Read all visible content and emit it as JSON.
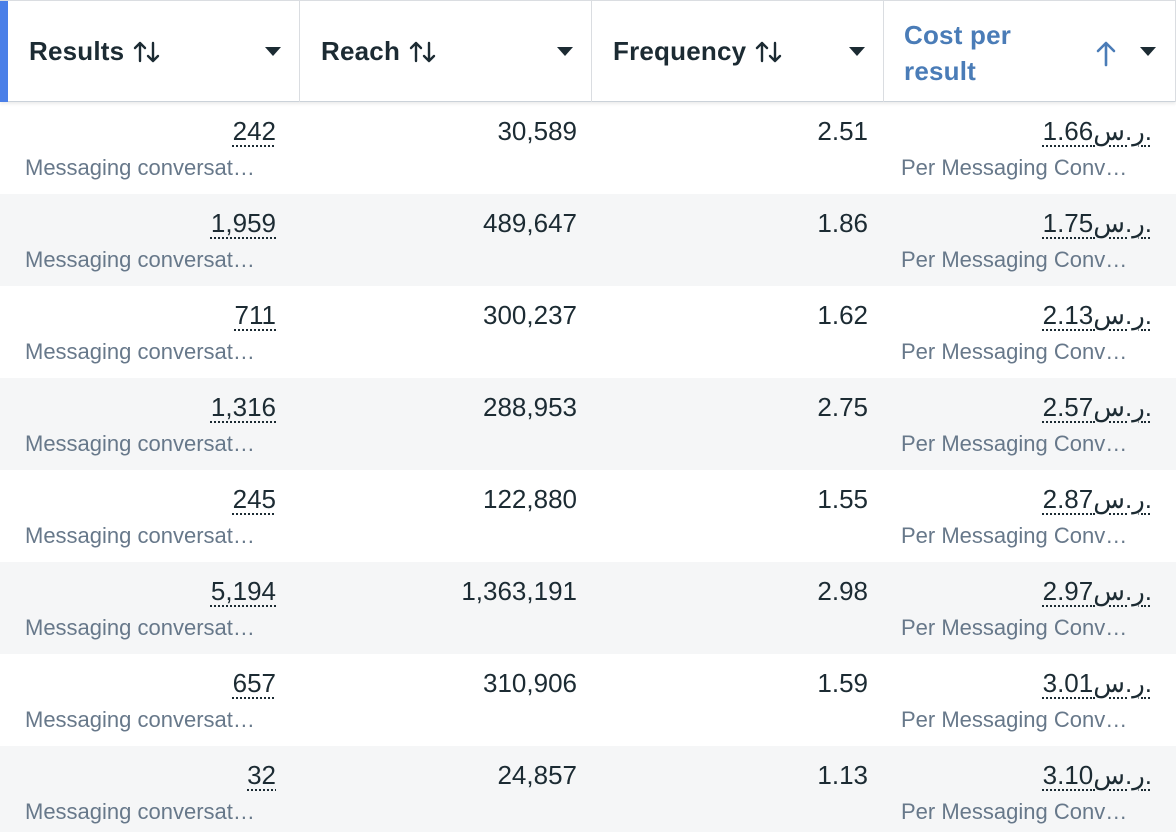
{
  "columns": {
    "results": {
      "label": "Results"
    },
    "reach": {
      "label": "Reach"
    },
    "frequency": {
      "label": "Frequency"
    },
    "cost": {
      "label": "Cost per result"
    }
  },
  "colors": {
    "accent": "#4a7fe8",
    "active_header": "#4a7cb7",
    "row_alt": "#f5f6f7",
    "text": "#1c2b33",
    "subtext": "#67788a"
  },
  "icons": {
    "sort": "sort-up-down-icon",
    "dropdown": "caret-down-icon",
    "sorted": "arrow-up-icon"
  },
  "rows": [
    {
      "results": "242",
      "results_sub": "Messaging conversat…",
      "reach": "30,589",
      "frequency": "2.51",
      "cost": "1.66ر.س.",
      "cost_sub": "Per Messaging Conv…"
    },
    {
      "results": "1,959",
      "results_sub": "Messaging conversat…",
      "reach": "489,647",
      "frequency": "1.86",
      "cost": "1.75ر.س.",
      "cost_sub": "Per Messaging Conv…"
    },
    {
      "results": "711",
      "results_sub": "Messaging conversat…",
      "reach": "300,237",
      "frequency": "1.62",
      "cost": "2.13ر.س.",
      "cost_sub": "Per Messaging Conv…"
    },
    {
      "results": "1,316",
      "results_sub": "Messaging conversat…",
      "reach": "288,953",
      "frequency": "2.75",
      "cost": "2.57ر.س.",
      "cost_sub": "Per Messaging Conv…"
    },
    {
      "results": "245",
      "results_sub": "Messaging conversat…",
      "reach": "122,880",
      "frequency": "1.55",
      "cost": "2.87ر.س.",
      "cost_sub": "Per Messaging Conv…"
    },
    {
      "results": "5,194",
      "results_sub": "Messaging conversat…",
      "reach": "1,363,191",
      "frequency": "2.98",
      "cost": "2.97ر.س.",
      "cost_sub": "Per Messaging Conv…"
    },
    {
      "results": "657",
      "results_sub": "Messaging conversat…",
      "reach": "310,906",
      "frequency": "1.59",
      "cost": "3.01ر.س.",
      "cost_sub": "Per Messaging Conv…"
    },
    {
      "results": "32",
      "results_sub": "Messaging conversat…",
      "reach": "24,857",
      "frequency": "1.13",
      "cost": "3.10ر.س.",
      "cost_sub": "Per Messaging Conv…"
    }
  ]
}
